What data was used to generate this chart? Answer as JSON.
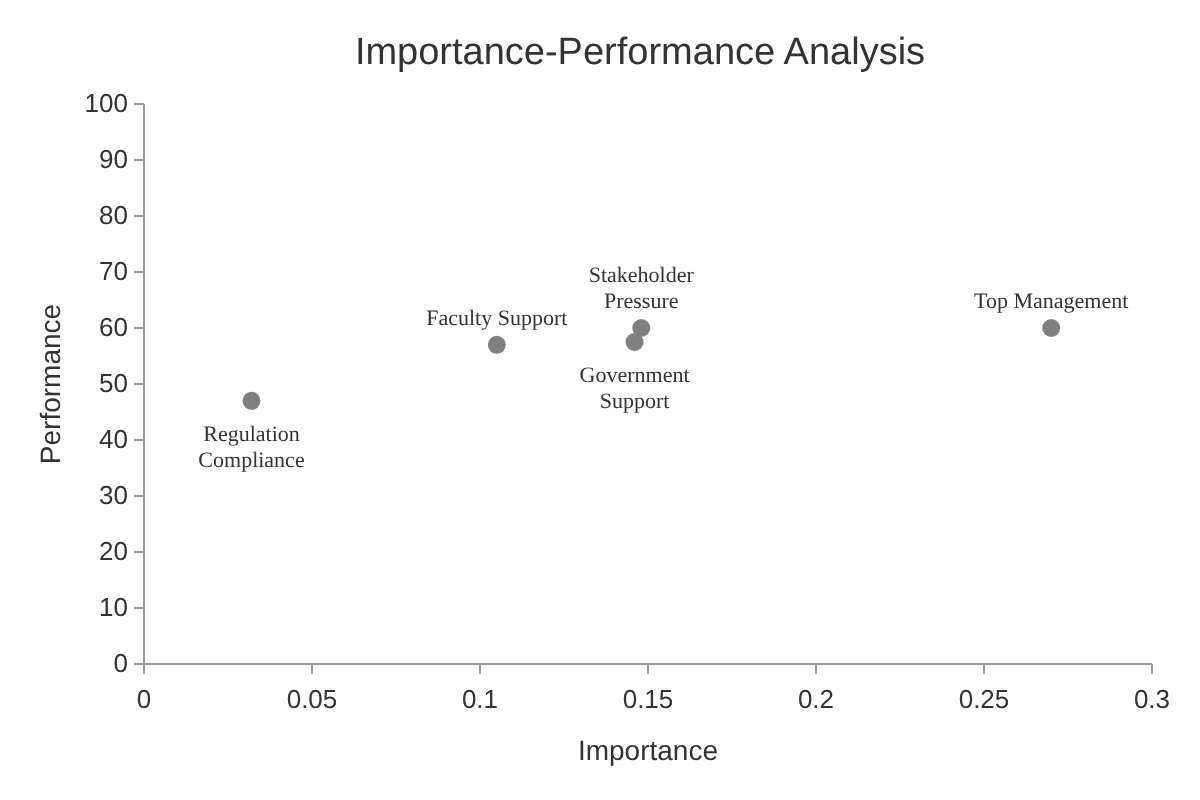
{
  "chart_data": {
    "type": "scatter",
    "title": "Importance-Performance Analysis",
    "xlabel": "Importance",
    "ylabel": "Performance",
    "x": [
      0.032,
      0.105,
      0.148,
      0.146,
      0.27
    ],
    "series": [
      {
        "color": "#808080",
        "values": [
          47,
          57,
          60,
          57.5,
          60
        ]
      }
    ],
    "marker": "circle",
    "annotations": [
      {
        "text": "Regulation\nCompliance",
        "x": 0.032,
        "y": 47
      },
      {
        "text": "Faculty Support",
        "x": 0.105,
        "y": 57
      },
      {
        "text": "Stakeholder\nPressure",
        "x": 0.148,
        "y": 60
      },
      {
        "text": "Government\nSupport",
        "x": 0.146,
        "y": 57.5
      },
      {
        "text": "Top Management",
        "x": 0.27,
        "y": 60
      }
    ],
    "xlim": [
      0,
      0.3
    ],
    "xticks": [
      0,
      0.05,
      0.1,
      0.15,
      0.2,
      0.25,
      0.3
    ],
    "ylim": [
      0,
      100
    ],
    "yticks": [
      0,
      10,
      20,
      30,
      40,
      50,
      60,
      70,
      80,
      90,
      100
    ]
  }
}
